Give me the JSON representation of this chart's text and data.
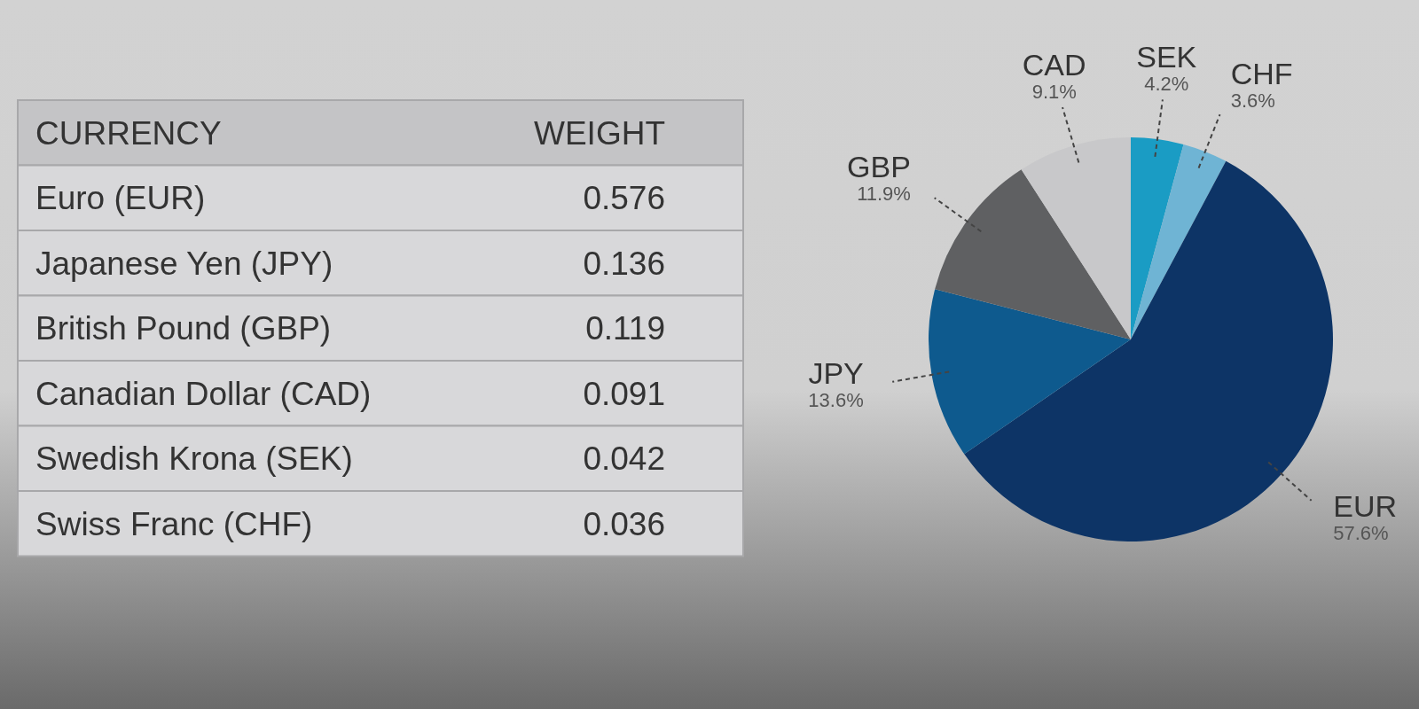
{
  "chart_data": [
    {
      "type": "other",
      "annotations": [
        "CURRENCY",
        "WEIGHT",
        "Euro (EUR)",
        "0.576",
        "Japanese Yen (JPY)",
        "0.136",
        "British Pound (GBP)",
        "0.119",
        "Canadian Dollar (CAD)",
        "0.091",
        "Swedish Krona (SEK)",
        "0.042",
        "Swiss Franc (CHF)",
        "0.036"
      ]
    },
    {
      "type": "pie",
      "categories": [
        "SEK",
        "CHF",
        "EUR",
        "JPY",
        "GBP",
        "CAD"
      ],
      "values": [
        4.2,
        3.6,
        57.6,
        13.6,
        11.9,
        9.1
      ],
      "colors": [
        "#1a9cc4",
        "#6fb4d4",
        "#0d3466",
        "#0e5a8e",
        "#5f6062",
        "#c8c8ca"
      ],
      "value_labels": [
        "4.2%",
        "3.6%",
        "57.6%",
        "13.6%",
        "11.9%",
        "9.1%"
      ]
    }
  ]
}
